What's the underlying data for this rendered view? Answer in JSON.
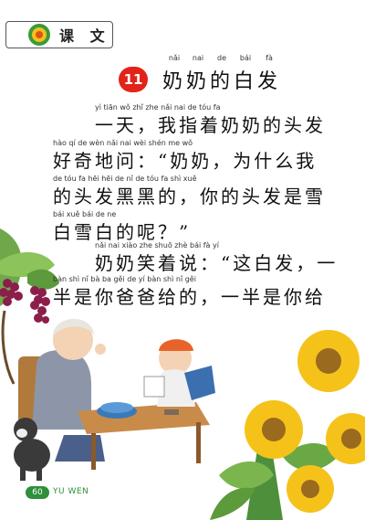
{
  "section": {
    "label": "课 文"
  },
  "lesson": {
    "number": "11",
    "title_pinyin": [
      "nǎi",
      "nai",
      "de",
      "bái",
      "fà"
    ],
    "title": "奶奶的白发"
  },
  "paragraphs": [
    {
      "pinyin": "yì tiān          wǒ zhǐ zhe nǎi nai de tóu fa",
      "text": "一天，我指着奶奶的头发"
    },
    {
      "pinyin": "hào qí  de wèn                nǎi nai          wèi shén me wǒ",
      "text": "好奇地问：“奶奶，为什么我"
    },
    {
      "pinyin": "de tóu fa hēi hēi de       nǐ  de tóu fa shì xuě",
      "text": "的头发黑黑的，你的头发是雪"
    },
    {
      "pinyin": "bái xuě bái de ne",
      "text": "白雪白的呢？”"
    },
    {
      "pinyin": "nǎi nai xiào zhe shuō           zhè bái fà          yí",
      "text": "奶奶笑着说：“这白发，一"
    },
    {
      "pinyin": "bàn shì  nǐ  bà ba gěi de       yí bàn shì  nǐ  gěi",
      "text": "半是你爸爸给的，一半是你给"
    }
  ],
  "footer": {
    "page_number": "60",
    "label": "YU WEN"
  },
  "colors": {
    "badge_red": "#e2231a",
    "footer_green": "#2f8f3a"
  }
}
